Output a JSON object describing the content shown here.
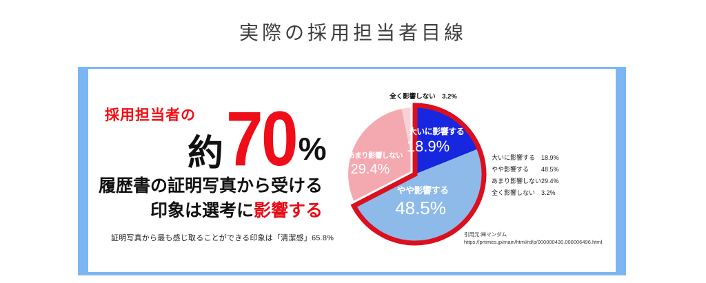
{
  "title": "実際の採用担当者目線",
  "panel": {
    "headline_prefix": "採用担当者の",
    "stat": {
      "approx": "約",
      "value": "70",
      "unit": "%"
    },
    "message_line1": "履歴書の証明写真から受ける",
    "message_line2_black": "印象は選考に",
    "message_line2_red": "影響する",
    "footnote": "証明写真から最も感じ取ることができる印象は「清潔感」65.8%",
    "source_label": "引用元:㈱マンダム",
    "source_url": "https://prtimes.jp/main/html/rd/p/000000430.000006496.html"
  },
  "legend": {
    "items": [
      {
        "label": "大いに影響する",
        "value": "18.9%"
      },
      {
        "label": "やや影響する",
        "value": "48.5%"
      },
      {
        "label": "あまり影響しない",
        "value": "29.4%"
      },
      {
        "label": "全く影響しない",
        "value": "3.2%"
      }
    ]
  },
  "chart_data": {
    "type": "pie",
    "title": "",
    "categories": [
      "大いに影響する",
      "やや影響する",
      "あまり影響しない",
      "全く影響しない"
    ],
    "values": [
      18.9,
      48.5,
      29.4,
      3.2
    ],
    "unit": "%",
    "colors": [
      "#1726df",
      "#8ebae9",
      "#f4a9b1",
      "#f9d0d6"
    ],
    "start_angle": "top",
    "direction": "clockwise",
    "label_text_color": "#ffffff",
    "outside_label_index": 3,
    "highlight_outline": {
      "slices": [
        0,
        1
      ],
      "color": "#dc0f1e"
    }
  },
  "colors": {
    "frame_blue": "#7cb6f2",
    "accent_red": "#ee0d18",
    "title_text": "#3e3e3e"
  }
}
